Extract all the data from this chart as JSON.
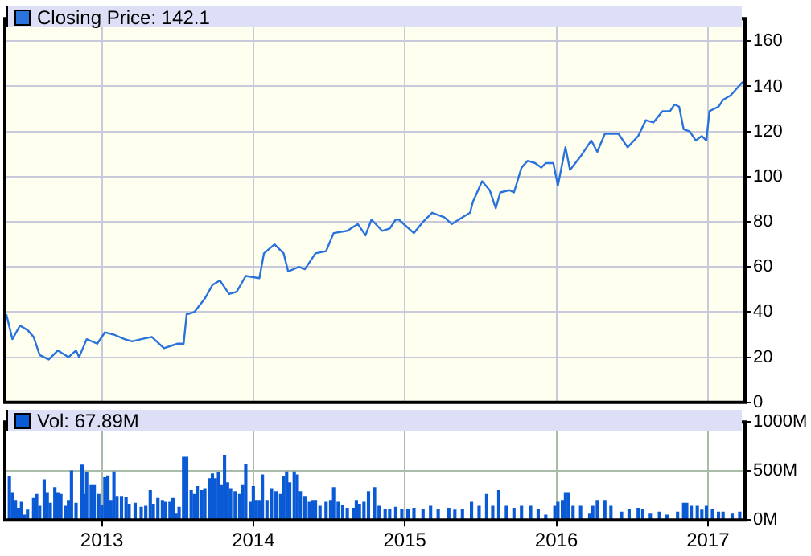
{
  "chart_data": [
    {
      "type": "line",
      "legend": "top left",
      "grid": true,
      "tick_labels": "y",
      "marker": "none",
      "line_style": "solid",
      "xlim": [
        2012.36,
        2017.245
      ],
      "xticks": [
        {
          "value": 2013,
          "label": null
        },
        {
          "value": 2014,
          "label": null
        },
        {
          "value": 2015,
          "label": null
        },
        {
          "value": 2016,
          "label": null
        },
        {
          "value": 2017,
          "label": null
        }
      ],
      "ylim": [
        0,
        170
      ],
      "yticks": [
        0,
        20,
        40,
        60,
        80,
        100,
        120,
        140,
        160
      ],
      "series": [
        {
          "name": "Closing Price: 142.1",
          "color": "#2a72dc",
          "x": [
            2012.37,
            2012.41,
            2012.46,
            2012.51,
            2012.55,
            2012.59,
            2012.65,
            2012.71,
            2012.78,
            2012.83,
            2012.85,
            2012.9,
            2012.97,
            2013.02,
            2013.08,
            2013.15,
            2013.2,
            2013.26,
            2013.33,
            2013.41,
            2013.5,
            2013.54,
            2013.56,
            2013.61,
            2013.68,
            2013.73,
            2013.78,
            2013.84,
            2013.89,
            2013.95,
            2014.04,
            2014.07,
            2014.14,
            2014.2,
            2014.23,
            2014.3,
            2014.34,
            2014.41,
            2014.48,
            2014.53,
            2014.62,
            2014.69,
            2014.74,
            2014.78,
            2014.85,
            2014.9,
            2014.94,
            2014.96,
            2015.06,
            2015.12,
            2015.18,
            2015.26,
            2015.31,
            2015.38,
            2015.43,
            2015.45,
            2015.51,
            2015.56,
            2015.6,
            2015.63,
            2015.69,
            2015.72,
            2015.77,
            2015.81,
            2015.86,
            2015.9,
            2015.93,
            2015.98,
            2016.01,
            2016.06,
            2016.09,
            2016.16,
            2016.19,
            2016.23,
            2016.27,
            2016.32,
            2016.38,
            2016.41,
            2016.47,
            2016.54,
            2016.59,
            2016.64,
            2016.7,
            2016.75,
            2016.78,
            2016.81,
            2016.84,
            2016.88,
            2016.92,
            2016.96,
            2016.99,
            2017.01,
            2017.07,
            2017.1,
            2017.15,
            2017.19,
            2017.23
          ],
          "values": [
            39,
            28,
            34,
            32,
            29,
            21,
            19,
            23,
            20,
            23,
            20,
            28,
            26,
            31,
            30,
            28,
            27,
            28,
            29,
            24,
            26,
            26,
            39,
            40,
            46,
            52,
            54,
            48,
            49,
            56,
            55,
            66,
            70,
            66,
            58,
            60,
            59,
            66,
            67,
            75,
            76,
            79,
            74,
            81,
            76,
            77,
            81,
            81,
            75,
            80,
            84,
            82,
            79,
            82,
            84,
            89,
            98,
            94,
            86,
            93,
            94,
            93,
            104,
            107,
            106,
            104,
            106,
            106,
            96,
            113,
            103,
            109,
            112,
            116,
            111,
            119,
            119,
            119,
            113,
            118,
            125,
            124,
            129,
            129,
            132,
            131,
            121,
            120,
            116,
            118,
            116,
            129,
            131,
            134,
            136,
            139,
            142
          ]
        }
      ]
    },
    {
      "type": "bar",
      "legend": "top left",
      "grid": true,
      "xlim": [
        2012.36,
        2017.245
      ],
      "xticks": [
        2013,
        2014,
        2015,
        2016,
        2017
      ],
      "ylim": [
        0,
        1000
      ],
      "yticks": [
        {
          "value": 0,
          "label": "0M"
        },
        {
          "value": 500,
          "label": "500M"
        },
        {
          "value": 1000,
          "label": "1000M"
        }
      ],
      "series": [
        {
          "name": "Vol: 67.89M",
          "color": "#0a5ad6",
          "x": [
            2012.39,
            2012.41,
            2012.43,
            2012.45,
            2012.47,
            2012.49,
            2012.51,
            2012.55,
            2012.57,
            2012.59,
            2012.62,
            2012.64,
            2012.66,
            2012.69,
            2012.71,
            2012.73,
            2012.76,
            2012.78,
            2012.8,
            2012.83,
            2012.87,
            2012.88,
            2012.9,
            2012.93,
            2012.95,
            2012.98,
            2013.0,
            2013.02,
            2013.04,
            2013.06,
            2013.08,
            2013.1,
            2013.13,
            2013.16,
            2013.18,
            2013.22,
            2013.26,
            2013.29,
            2013.32,
            2013.34,
            2013.37,
            2013.4,
            2013.42,
            2013.45,
            2013.47,
            2013.49,
            2013.51,
            2013.54,
            2013.56,
            2013.59,
            2013.61,
            2013.63,
            2013.66,
            2013.68,
            2013.71,
            2013.73,
            2013.75,
            2013.77,
            2013.79,
            2013.81,
            2013.83,
            2013.85,
            2013.88,
            2013.91,
            2013.93,
            2013.95,
            2013.98,
            2014.0,
            2014.02,
            2014.04,
            2014.06,
            2014.09,
            2014.12,
            2014.15,
            2014.18,
            2014.2,
            2014.22,
            2014.24,
            2014.27,
            2014.29,
            2014.31,
            2014.34,
            2014.37,
            2014.39,
            2014.41,
            2014.44,
            2014.48,
            2014.51,
            2014.53,
            2014.56,
            2014.59,
            2014.62,
            2014.66,
            2014.68,
            2014.7,
            2014.73,
            2014.76,
            2014.8,
            2014.83,
            2014.87,
            2014.9,
            2014.94,
            2014.98,
            2015.02,
            2015.06,
            2015.12,
            2015.17,
            2015.22,
            2015.29,
            2015.33,
            2015.38,
            2015.44,
            2015.49,
            2015.54,
            2015.58,
            2015.62,
            2015.67,
            2015.72,
            2015.77,
            2015.83,
            2015.88,
            2015.93,
            2015.99,
            2016.01,
            2016.04,
            2016.06,
            2016.08,
            2016.11,
            2016.16,
            2016.22,
            2016.24,
            2016.27,
            2016.32,
            2016.36,
            2016.43,
            2016.48,
            2016.54,
            2016.57,
            2016.62,
            2016.68,
            2016.73,
            2016.8,
            2016.84,
            2016.86,
            2016.89,
            2016.93,
            2016.96,
            2016.99,
            2017.03,
            2017.07,
            2017.1,
            2017.16,
            2017.21
          ],
          "values": [
            440,
            280,
            200,
            120,
            180,
            50,
            100,
            220,
            260,
            140,
            410,
            280,
            170,
            330,
            280,
            260,
            140,
            200,
            500,
            170,
            560,
            260,
            480,
            350,
            350,
            260,
            150,
            430,
            450,
            200,
            490,
            240,
            240,
            230,
            160,
            170,
            130,
            140,
            300,
            160,
            220,
            200,
            180,
            180,
            220,
            60,
            130,
            640,
            640,
            300,
            260,
            340,
            300,
            320,
            420,
            470,
            420,
            480,
            350,
            660,
            380,
            320,
            290,
            260,
            350,
            570,
            180,
            340,
            200,
            200,
            460,
            200,
            320,
            290,
            260,
            440,
            490,
            380,
            490,
            460,
            290,
            240,
            180,
            200,
            200,
            140,
            180,
            200,
            330,
            180,
            150,
            120,
            120,
            200,
            160,
            180,
            290,
            330,
            140,
            110,
            110,
            130,
            110,
            110,
            120,
            110,
            140,
            110,
            120,
            100,
            110,
            180,
            140,
            260,
            140,
            300,
            140,
            120,
            140,
            140,
            110,
            50,
            140,
            180,
            200,
            280,
            280,
            140,
            140,
            60,
            140,
            200,
            200,
            140,
            80,
            110,
            120,
            110,
            60,
            80,
            50,
            80,
            170,
            170,
            140,
            140,
            100,
            140,
            110,
            80,
            80,
            60,
            80
          ]
        }
      ]
    }
  ]
}
